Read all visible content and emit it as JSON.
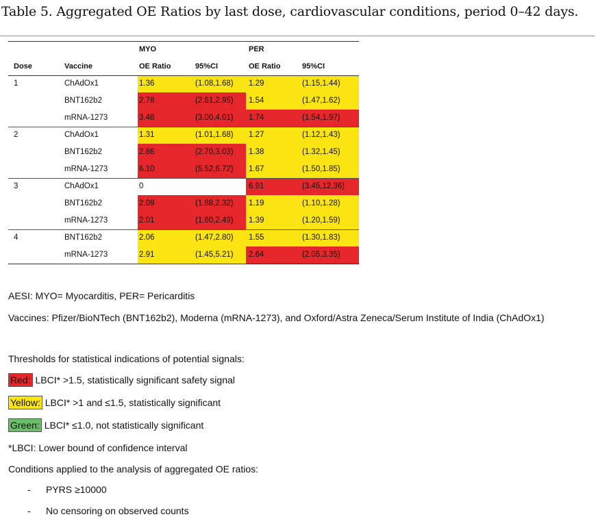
{
  "caption": "Table 5. Aggregated OE Ratios by last dose, cardiovascular conditions, period 0–42 days.",
  "table": {
    "group_headers": {
      "myo": "MYO",
      "per": "PER"
    },
    "columns": {
      "dose": "Dose",
      "vaccine": "Vaccine",
      "myo_oe": "OE Ratio",
      "myo_ci": "95%CI",
      "per_oe": "OE Ratio",
      "per_ci": "95%CI"
    },
    "rows": [
      {
        "dose": "1",
        "vaccine": "ChAdOx1",
        "myo_oe": "1.36",
        "myo_ci": "(1.08,1.68)",
        "myo_color": "yellow",
        "per_oe": "1.29",
        "per_ci": "(1.15,1.44)",
        "per_color": "yellow"
      },
      {
        "dose": "",
        "vaccine": "BNT162b2",
        "myo_oe": "2.78",
        "myo_ci": "(2.61,2.95)",
        "myo_color": "red",
        "per_oe": "1.54",
        "per_ci": "(1.47,1.62)",
        "per_color": "yellow"
      },
      {
        "dose": "",
        "vaccine": "mRNA-1273",
        "myo_oe": "3.48",
        "myo_ci": "(3.00,4.01)",
        "myo_color": "red",
        "per_oe": "1.74",
        "per_ci": "(1.54,1.97)",
        "per_color": "red"
      },
      {
        "dose": "2",
        "vaccine": "ChAdOx1",
        "myo_oe": "1.31",
        "myo_ci": "(1.01,1.68)",
        "myo_color": "yellow",
        "per_oe": "1.27",
        "per_ci": "(1.12,1.43)",
        "per_color": "yellow"
      },
      {
        "dose": "",
        "vaccine": "BNT162b2",
        "myo_oe": "2.86",
        "myo_ci": "(2.70,3.03)",
        "myo_color": "red",
        "per_oe": "1.38",
        "per_ci": "(1.32,1.45)",
        "per_color": "yellow"
      },
      {
        "dose": "",
        "vaccine": "mRNA-1273",
        "myo_oe": "6.10",
        "myo_ci": "(5.52,6.72)",
        "myo_color": "red",
        "per_oe": "1.67",
        "per_ci": "(1.50,1.85)",
        "per_color": "yellow"
      },
      {
        "dose": "3",
        "vaccine": "ChAdOx1",
        "myo_oe": "0",
        "myo_ci": "",
        "myo_color": "none",
        "per_oe": "6.91",
        "per_ci": "(3.45,12.36)",
        "per_color": "red"
      },
      {
        "dose": "",
        "vaccine": "BNT162b2",
        "myo_oe": "2.09",
        "myo_ci": "(1.88,2.32)",
        "myo_color": "red",
        "per_oe": "1.19",
        "per_ci": "(1.10,1.28)",
        "per_color": "yellow"
      },
      {
        "dose": "",
        "vaccine": "mRNA-1273",
        "myo_oe": "2.01",
        "myo_ci": "(1.60,2.49)",
        "myo_color": "red",
        "per_oe": "1.39",
        "per_ci": "(1.20,1.59)",
        "per_color": "yellow"
      },
      {
        "dose": "4",
        "vaccine": "BNT162b2",
        "myo_oe": "2.06",
        "myo_ci": "(1.47,2.80)",
        "myo_color": "yellow",
        "per_oe": "1.55",
        "per_ci": "(1.30,1.83)",
        "per_color": "yellow"
      },
      {
        "dose": "",
        "vaccine": "mRNA-1273",
        "myo_oe": "2.91",
        "myo_ci": "(1.45,5.21)",
        "myo_color": "yellow",
        "per_oe": "2.64",
        "per_ci": "(2.05,3.35)",
        "per_color": "red"
      }
    ]
  },
  "colors": {
    "red": "#e5262b",
    "yellow": "#fae411",
    "green": "#6cbf6a"
  },
  "notes": {
    "aesi": "AESI: MYO= Myocarditis, PER= Pericarditis",
    "vaccines": "Vaccines: Pfizer/BioNTech (BNT162b2), Moderna (mRNA-1273), and Oxford/Astra Zeneca/Serum Institute of India (ChAdOx1)",
    "thresholds_title": "Thresholds for statistical indications of potential signals:",
    "red_tag": "Red:",
    "red_text": " LBCI* >1.5, statistically significant safety signal",
    "yellow_tag": "Yellow:",
    "yellow_text": " LBCI* >1 and ≤1.5, statistically significant",
    "green_tag": "Green:",
    "green_text": " LBCI* ≤1.0, not statistically significant",
    "lbci": "*LBCI: Lower bound of confidence interval",
    "conditions_title": "Conditions applied to the analysis of aggregated OE ratios:",
    "bullet_marker": "-",
    "conditions": [
      "PYRS ≥10000",
      "No censoring on observed counts"
    ]
  }
}
